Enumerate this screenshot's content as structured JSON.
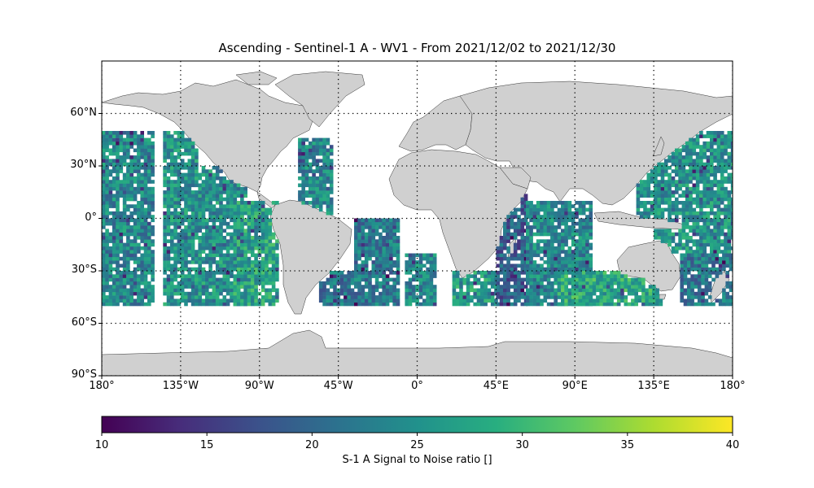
{
  "title": "Ascending - Sentinel-1 A - WV1 - From 2021/12/02 to 2021/12/30",
  "map": {
    "projection": "plate-carree",
    "lon_range": [
      -180,
      180
    ],
    "lat_range": [
      -90,
      90
    ],
    "gridlines": "dotted",
    "land_color": "#d0d0d0",
    "lat_ticks": [
      {
        "value": 60,
        "label": "60°N"
      },
      {
        "value": 30,
        "label": "30°N"
      },
      {
        "value": 0,
        "label": "0°"
      },
      {
        "value": -30,
        "label": "30°S"
      },
      {
        "value": -60,
        "label": "60°S"
      },
      {
        "value": -90,
        "label": "90°S"
      }
    ],
    "lon_ticks": [
      {
        "value": -180,
        "label": "180°"
      },
      {
        "value": -135,
        "label": "135°W"
      },
      {
        "value": -90,
        "label": "90°W"
      },
      {
        "value": -45,
        "label": "45°W"
      },
      {
        "value": 0,
        "label": "0°"
      },
      {
        "value": 45,
        "label": "45°E"
      },
      {
        "value": 90,
        "label": "90°E"
      },
      {
        "value": 135,
        "label": "135°E"
      },
      {
        "value": 180,
        "label": "180°"
      }
    ],
    "data_lat_range": [
      -50,
      50
    ],
    "cell_size_deg": 2,
    "swaths": [
      {
        "lon": [
          -180,
          -150
        ],
        "lat": [
          -50,
          50
        ],
        "bias": 24
      },
      {
        "lon": [
          -145,
          -125
        ],
        "lat": [
          -50,
          50
        ],
        "bias": 25
      },
      {
        "lon": [
          -125,
          -98
        ],
        "lat": [
          -50,
          30
        ],
        "bias": 25
      },
      {
        "lon": [
          -105,
          -80
        ],
        "lat": [
          -50,
          10
        ],
        "bias": 27
      },
      {
        "lon": [
          -68,
          -48
        ],
        "lat": [
          0,
          45
        ],
        "bias": 24
      },
      {
        "lon": [
          -56,
          -36
        ],
        "lat": [
          -50,
          -30
        ],
        "bias": 22
      },
      {
        "lon": [
          -36,
          -10
        ],
        "lat": [
          -50,
          0
        ],
        "bias": 22
      },
      {
        "lon": [
          -7,
          10
        ],
        "lat": [
          -50,
          -20
        ],
        "bias": 24
      },
      {
        "lon": [
          20,
          45
        ],
        "lat": [
          -50,
          -30
        ],
        "bias": 26
      },
      {
        "lon": [
          45,
          62
        ],
        "lat": [
          -50,
          20
        ],
        "bias": 19
      },
      {
        "lon": [
          62,
          100
        ],
        "lat": [
          -50,
          10
        ],
        "bias": 24
      },
      {
        "lon": [
          80,
          140
        ],
        "lat": [
          -50,
          -30
        ],
        "bias": 28
      },
      {
        "lon": [
          125,
          135
        ],
        "lat": [
          0,
          30
        ],
        "bias": 25
      },
      {
        "lon": [
          135,
          180
        ],
        "lat": [
          -20,
          50
        ],
        "bias": 25
      },
      {
        "lon": [
          150,
          180
        ],
        "lat": [
          -50,
          -20
        ],
        "bias": 22
      }
    ]
  },
  "colorbar": {
    "colormap": "viridis",
    "min": 10,
    "max": 40,
    "ticks": [
      10,
      15,
      20,
      25,
      30,
      35,
      40
    ],
    "label": "S-1 A Signal to Noise ratio []"
  }
}
